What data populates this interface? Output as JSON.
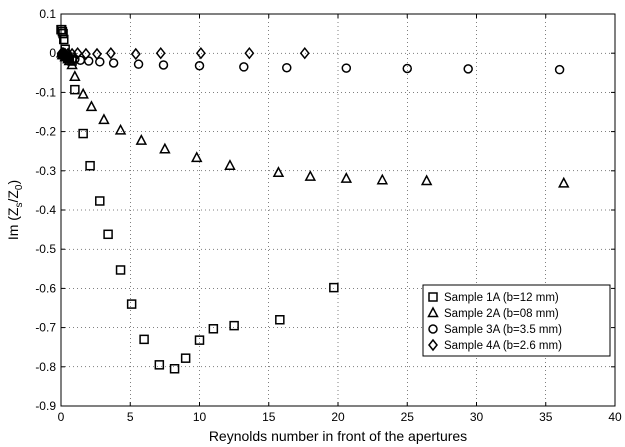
{
  "chart_data": {
    "type": "scatter",
    "xlabel": "Reynolds number in front of the apertures",
    "ylabel_main": "Im (Z",
    "ylabel_sub1": "s",
    "ylabel_mid": "/Z",
    "ylabel_sub2": "0",
    "ylabel_end": ")",
    "xlim": [
      0,
      40
    ],
    "ylim": [
      -0.9,
      0.1
    ],
    "xticks": [
      0,
      5,
      10,
      15,
      20,
      25,
      30,
      35,
      40
    ],
    "xtick_labels": [
      "0",
      "5",
      "10",
      "15",
      "20",
      "25",
      "30",
      "35",
      "40"
    ],
    "yticks": [
      0.1,
      0,
      -0.1,
      -0.2,
      -0.3,
      -0.4,
      -0.5,
      -0.6,
      -0.7,
      -0.8,
      -0.9
    ],
    "ytick_labels": [
      "0.1",
      "0",
      "-0.1",
      "-0.2",
      "-0.3",
      "-0.4",
      "-0.5",
      "-0.6",
      "-0.7",
      "-0.8",
      "-0.9"
    ],
    "grid": true,
    "legend_position": "bottom-right",
    "series": [
      {
        "name": "Sample 1A (b=12 mm)",
        "marker": "square",
        "x": [
          0.0,
          0.05,
          0.1,
          0.15,
          0.2,
          0.3,
          0.4,
          0.5,
          0.6,
          0.8,
          1.0,
          1.6,
          2.1,
          2.8,
          3.4,
          4.3,
          5.1,
          6.0,
          7.1,
          8.2,
          9.0,
          10.0,
          11.0,
          12.5,
          15.8,
          19.7
        ],
        "y": [
          0.06,
          0.06,
          0.055,
          0.05,
          0.035,
          0.01,
          -0.005,
          -0.01,
          -0.015,
          -0.02,
          -0.093,
          -0.205,
          -0.287,
          -0.377,
          -0.462,
          -0.553,
          -0.64,
          -0.73,
          -0.795,
          -0.805,
          -0.778,
          -0.732,
          -0.703,
          -0.695,
          -0.68,
          -0.598
        ]
      },
      {
        "name": "Sample 2A (b=08 mm)",
        "marker": "triangle",
        "x": [
          0.05,
          0.1,
          0.2,
          0.3,
          0.4,
          0.5,
          0.6,
          0.8,
          1.0,
          1.6,
          2.2,
          3.1,
          4.3,
          5.8,
          7.5,
          9.8,
          12.2,
          15.7,
          18.0,
          20.6,
          23.2,
          26.4,
          36.3
        ],
        "y": [
          0.0,
          -0.005,
          -0.005,
          -0.01,
          -0.01,
          -0.015,
          -0.02,
          -0.03,
          -0.06,
          -0.105,
          -0.137,
          -0.17,
          -0.197,
          -0.223,
          -0.245,
          -0.267,
          -0.287,
          -0.305,
          -0.315,
          -0.32,
          -0.324,
          -0.326,
          -0.332
        ]
      },
      {
        "name": "Sample 3A (b=3.5 mm)",
        "marker": "circle",
        "x": [
          0.05,
          0.1,
          0.2,
          0.3,
          0.4,
          0.6,
          0.8,
          1.0,
          1.4,
          2.0,
          2.8,
          3.8,
          5.6,
          7.4,
          10.0,
          13.2,
          16.3,
          20.6,
          25.0,
          29.4,
          36.0
        ],
        "y": [
          -0.005,
          -0.005,
          -0.008,
          -0.01,
          -0.012,
          -0.013,
          -0.015,
          -0.015,
          -0.018,
          -0.02,
          -0.022,
          -0.025,
          -0.028,
          -0.03,
          -0.032,
          -0.035,
          -0.037,
          -0.038,
          -0.039,
          -0.04,
          -0.042
        ]
      },
      {
        "name": "Sample 4A (b=2.6 mm)",
        "marker": "diamond",
        "x": [
          0.05,
          0.1,
          0.2,
          0.3,
          0.5,
          0.8,
          1.2,
          1.8,
          2.6,
          3.6,
          5.4,
          7.2,
          10.1,
          13.6,
          17.6
        ],
        "y": [
          0.0,
          0.0,
          0.0,
          -0.002,
          -0.002,
          -0.002,
          0.0,
          -0.002,
          -0.002,
          0.0,
          -0.002,
          0.0,
          0.0,
          0.0,
          0.0
        ]
      }
    ]
  }
}
